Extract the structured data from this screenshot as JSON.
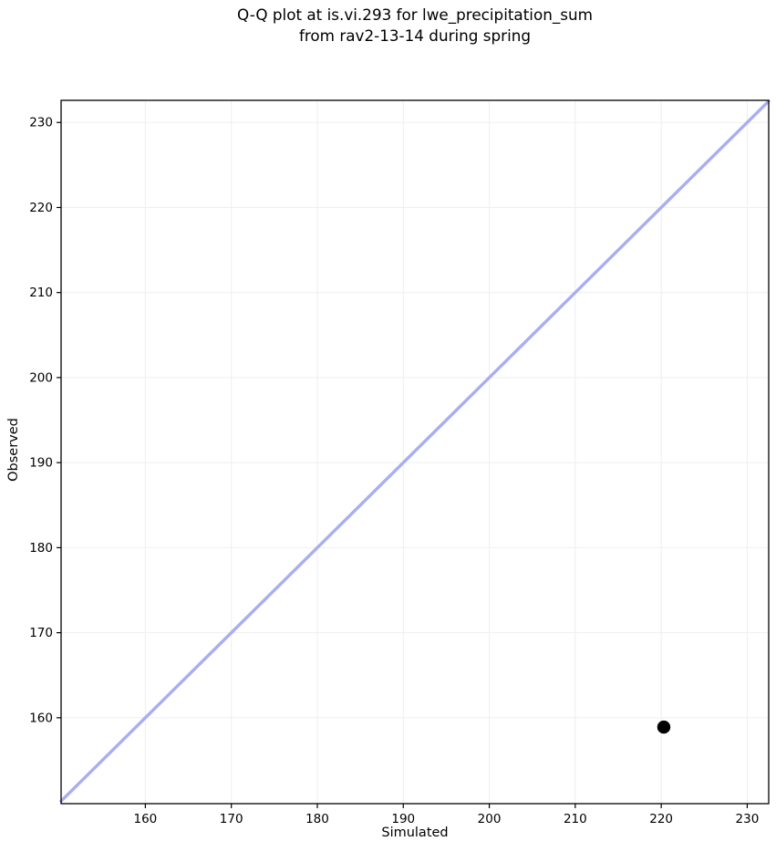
{
  "chart_data": {
    "type": "scatter",
    "title": "Q-Q plot at is.vi.293 for lwe_precipitation_sum\nfrom rav2-13-14 during spring",
    "title_lines": [
      "Q-Q plot at is.vi.293 for lwe_precipitation_sum",
      "from rav2-13-14 during spring"
    ],
    "xlabel": "Simulated",
    "ylabel": "Observed",
    "xlim": [
      150.2,
      232.5
    ],
    "ylim": [
      149.9,
      232.6
    ],
    "xticks": [
      160,
      170,
      180,
      190,
      200,
      210,
      220,
      230
    ],
    "yticks": [
      160,
      170,
      180,
      190,
      200,
      210,
      220,
      230
    ],
    "grid": true,
    "legend": "none",
    "points": [
      {
        "simulated": 220.3,
        "observed": 158.9
      }
    ],
    "identity_line": {
      "start": 150.2,
      "end": 232.5
    },
    "colors": {
      "identity_line": "#a8aef2",
      "point": "#000000",
      "grid": "#f0f0f0",
      "spine": "#000000",
      "text": "#000000",
      "background": "#ffffff"
    }
  }
}
